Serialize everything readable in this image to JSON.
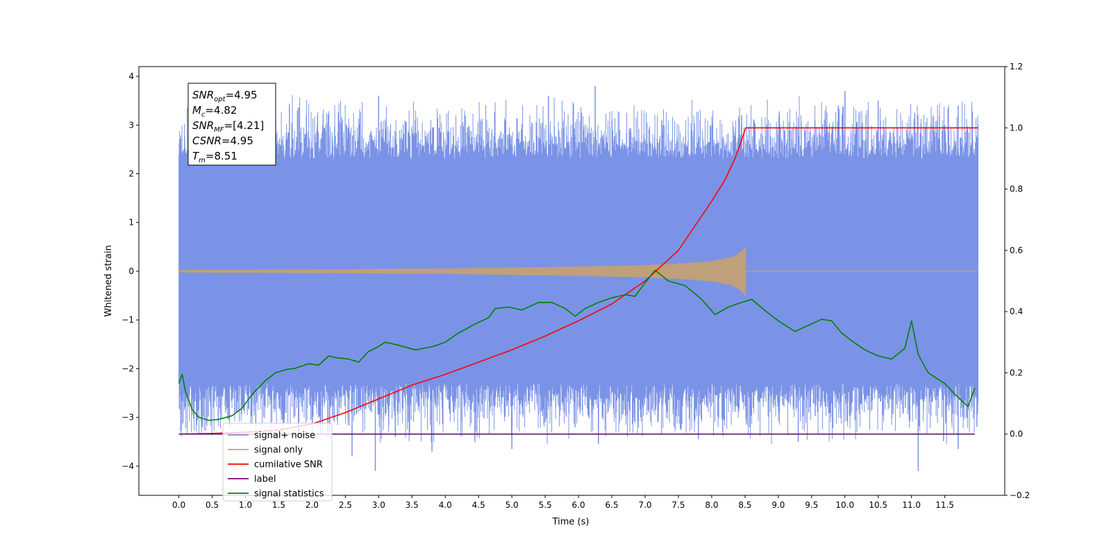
{
  "chart_data": {
    "type": "line",
    "xlabel": "Time (s)",
    "ylabel": "Whitened strain",
    "xlim": [
      -0.6,
      12.4
    ],
    "ylim": [
      -4.6,
      4.2
    ],
    "y2lim": [
      -0.2,
      1.2
    ],
    "xticks": [
      "0.0",
      "0.5",
      "1.0",
      "1.5",
      "2.0",
      "2.5",
      "3.0",
      "3.5",
      "4.0",
      "4.5",
      "5.0",
      "5.5",
      "6.0",
      "6.5",
      "7.0",
      "7.5",
      "8.0",
      "8.5",
      "9.0",
      "9.5",
      "10.0",
      "10.5",
      "11.0",
      "11.5"
    ],
    "yticks": [
      "4",
      "3",
      "2",
      "1",
      "0",
      "−1",
      "−2",
      "−3",
      "−4"
    ],
    "y2ticks": [
      "1.2",
      "1.0",
      "0.8",
      "0.6",
      "0.4",
      "0.2",
      "0.0",
      "−0.2"
    ],
    "legend_position": "lower-left",
    "annotation": {
      "lines": [
        {
          "name": "SNR",
          "sub": "opt",
          "value": "=4.95"
        },
        {
          "name": "M",
          "sub": "c",
          "value": "=4.82"
        },
        {
          "name": "SNR",
          "sub": "MF",
          "value": "=[4.21]"
        },
        {
          "name": "CSNR",
          "sub": "",
          "value": "=4.95"
        },
        {
          "name": "T",
          "sub": "m",
          "value": "=8.51"
        }
      ]
    },
    "series": [
      {
        "name": "signal+ noise",
        "color": "#7b93e6",
        "axis": "left",
        "kind": "noise-band",
        "x_range": [
          0.0,
          12.0
        ],
        "typical_range": [
          -2.3,
          2.3
        ],
        "extreme_range": [
          -4.1,
          3.8
        ],
        "spikes": [
          [
            0.35,
            -3.2
          ],
          [
            0.6,
            2.7
          ],
          [
            0.95,
            3.1
          ],
          [
            1.35,
            3.1
          ],
          [
            2.1,
            -3.0
          ],
          [
            2.6,
            -3.8
          ],
          [
            2.95,
            -4.1
          ],
          [
            3.0,
            3.6
          ],
          [
            3.25,
            -3.4
          ],
          [
            3.55,
            3.1
          ],
          [
            3.8,
            -3.7
          ],
          [
            4.3,
            3.2
          ],
          [
            4.9,
            3.1
          ],
          [
            5.0,
            -3.65
          ],
          [
            5.5,
            -3.1
          ],
          [
            5.55,
            3.6
          ],
          [
            5.95,
            -3.2
          ],
          [
            6.25,
            3.8
          ],
          [
            6.3,
            -3.55
          ],
          [
            7.25,
            3.1
          ],
          [
            7.8,
            -3.45
          ],
          [
            8.45,
            3.2
          ],
          [
            9.3,
            -3.5
          ],
          [
            9.55,
            3.1
          ],
          [
            9.9,
            3.4
          ],
          [
            10.0,
            3.7
          ],
          [
            10.5,
            3.5
          ],
          [
            11.05,
            3.25
          ],
          [
            11.1,
            -4.1
          ],
          [
            11.5,
            3.0
          ],
          [
            11.7,
            3.4
          ],
          [
            11.7,
            -3.65
          ]
        ]
      },
      {
        "name": "signal only",
        "color": "#c0a07a",
        "axis": "left",
        "kind": "chirp-envelope",
        "t_merger": 8.51,
        "envelope": [
          [
            0.0,
            0.02
          ],
          [
            2.0,
            0.03
          ],
          [
            4.0,
            0.05
          ],
          [
            6.0,
            0.09
          ],
          [
            7.0,
            0.12
          ],
          [
            7.5,
            0.15
          ],
          [
            8.0,
            0.2
          ],
          [
            8.3,
            0.28
          ],
          [
            8.45,
            0.4
          ],
          [
            8.51,
            0.5
          ]
        ]
      },
      {
        "name": "cumilative SNR",
        "color": "#ff0000",
        "axis": "right",
        "x": [
          0.0,
          0.5,
          1.0,
          1.5,
          2.0,
          2.5,
          3.0,
          3.5,
          4.0,
          4.5,
          5.0,
          5.5,
          6.0,
          6.5,
          7.0,
          7.5,
          8.0,
          8.2,
          8.35,
          8.45,
          8.51,
          12.0
        ],
        "y": [
          0.0,
          0.002,
          0.006,
          0.013,
          0.033,
          0.07,
          0.115,
          0.16,
          0.195,
          0.235,
          0.275,
          0.32,
          0.37,
          0.425,
          0.5,
          0.6,
          0.76,
          0.83,
          0.9,
          0.96,
          1.0,
          1.0
        ]
      },
      {
        "name": "label",
        "color": "#6d0a6d",
        "axis": "right",
        "x": [
          0.0,
          11.95
        ],
        "y": [
          0.0,
          0.0
        ]
      },
      {
        "name": "signal statistics",
        "color": "#008000",
        "axis": "right",
        "x": [
          0.0,
          0.05,
          0.1,
          0.2,
          0.3,
          0.45,
          0.6,
          0.8,
          0.95,
          1.1,
          1.3,
          1.45,
          1.6,
          1.75,
          1.95,
          2.1,
          2.25,
          2.35,
          2.55,
          2.7,
          2.85,
          2.95,
          3.1,
          3.3,
          3.55,
          3.8,
          4.0,
          4.2,
          4.45,
          4.65,
          4.75,
          4.95,
          5.15,
          5.4,
          5.6,
          5.8,
          5.95,
          6.1,
          6.3,
          6.5,
          6.7,
          6.85,
          6.95,
          7.15,
          7.35,
          7.6,
          7.85,
          8.05,
          8.25,
          8.45,
          8.6,
          8.85,
          9.0,
          9.25,
          9.5,
          9.65,
          9.8,
          9.95,
          10.1,
          10.3,
          10.5,
          10.7,
          10.9,
          11.0,
          11.1,
          11.25,
          11.5,
          11.65,
          11.85,
          11.95
        ],
        "y": [
          0.165,
          0.195,
          0.14,
          0.08,
          0.055,
          0.045,
          0.048,
          0.06,
          0.085,
          0.13,
          0.175,
          0.2,
          0.21,
          0.215,
          0.23,
          0.225,
          0.255,
          0.25,
          0.245,
          0.235,
          0.27,
          0.28,
          0.3,
          0.29,
          0.275,
          0.285,
          0.3,
          0.33,
          0.36,
          0.38,
          0.41,
          0.415,
          0.405,
          0.43,
          0.43,
          0.41,
          0.385,
          0.41,
          0.43,
          0.445,
          0.455,
          0.45,
          0.48,
          0.535,
          0.5,
          0.485,
          0.44,
          0.39,
          0.415,
          0.43,
          0.44,
          0.395,
          0.37,
          0.335,
          0.36,
          0.375,
          0.37,
          0.33,
          0.305,
          0.275,
          0.255,
          0.245,
          0.28,
          0.37,
          0.26,
          0.2,
          0.165,
          0.13,
          0.09,
          0.15
        ]
      }
    ]
  }
}
